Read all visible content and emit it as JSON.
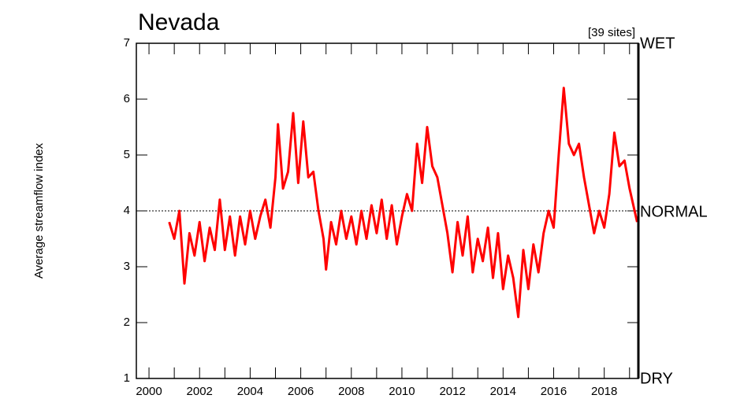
{
  "chart_data": {
    "type": "line",
    "title": "Nevada",
    "ylabel": "Average streamflow index",
    "annotations": {
      "sites": "[39 sites]",
      "wet": "WET",
      "normal": "NORMAL",
      "dry": "DRY"
    },
    "normal_line": 4,
    "xlim": [
      1999.5,
      2019.35
    ],
    "xticks": [
      2000,
      2002,
      2004,
      2006,
      2008,
      2010,
      2012,
      2014,
      2016,
      2018
    ],
    "x_minor_ticks": [
      2001,
      2003,
      2005,
      2007,
      2009,
      2011,
      2013,
      2015,
      2017,
      2019
    ],
    "ylim": [
      1,
      7
    ],
    "yticks": [
      1,
      2,
      3,
      4,
      5,
      6,
      7
    ],
    "series": [
      {
        "color": "#ff0000",
        "x": [
          2000.8,
          2001.0,
          2001.2,
          2001.4,
          2001.6,
          2001.8,
          2002.0,
          2002.2,
          2002.4,
          2002.6,
          2002.8,
          2003.0,
          2003.2,
          2003.4,
          2003.6,
          2003.8,
          2004.0,
          2004.2,
          2004.4,
          2004.6,
          2004.8,
          2005.0,
          2005.1,
          2005.3,
          2005.5,
          2005.7,
          2005.9,
          2006.1,
          2006.3,
          2006.5,
          2006.7,
          2006.9,
          2007.0,
          2007.2,
          2007.4,
          2007.6,
          2007.8,
          2008.0,
          2008.2,
          2008.4,
          2008.6,
          2008.8,
          2009.0,
          2009.2,
          2009.4,
          2009.6,
          2009.8,
          2010.0,
          2010.2,
          2010.4,
          2010.6,
          2010.8,
          2011.0,
          2011.2,
          2011.4,
          2011.6,
          2011.8,
          2012.0,
          2012.2,
          2012.4,
          2012.6,
          2012.8,
          2013.0,
          2013.2,
          2013.4,
          2013.6,
          2013.8,
          2014.0,
          2014.2,
          2014.4,
          2014.6,
          2014.8,
          2015.0,
          2015.2,
          2015.4,
          2015.6,
          2015.8,
          2016.0,
          2016.2,
          2016.4,
          2016.6,
          2016.8,
          2017.0,
          2017.2,
          2017.4,
          2017.6,
          2017.8,
          2018.0,
          2018.2,
          2018.4,
          2018.6,
          2018.8,
          2019.0,
          2019.2,
          2019.3
        ],
        "values": [
          3.8,
          3.5,
          4.0,
          2.7,
          3.6,
          3.2,
          3.8,
          3.1,
          3.7,
          3.3,
          4.2,
          3.3,
          3.9,
          3.2,
          3.9,
          3.4,
          4.0,
          3.5,
          3.9,
          4.2,
          3.7,
          4.6,
          5.55,
          4.4,
          4.7,
          5.75,
          4.5,
          5.6,
          4.6,
          4.7,
          4.0,
          3.5,
          2.95,
          3.8,
          3.4,
          4.0,
          3.5,
          3.9,
          3.4,
          4.0,
          3.5,
          4.1,
          3.6,
          4.2,
          3.5,
          4.1,
          3.4,
          3.9,
          4.3,
          4.0,
          5.2,
          4.5,
          5.5,
          4.8,
          4.6,
          4.1,
          3.6,
          2.9,
          3.8,
          3.2,
          3.9,
          2.9,
          3.5,
          3.1,
          3.7,
          2.8,
          3.6,
          2.6,
          3.2,
          2.8,
          2.1,
          3.3,
          2.6,
          3.4,
          2.9,
          3.6,
          4.0,
          3.7,
          5.0,
          6.2,
          5.2,
          5.0,
          5.2,
          4.6,
          4.1,
          3.6,
          4.0,
          3.7,
          4.3,
          5.4,
          4.8,
          4.9,
          4.4,
          4.0,
          3.8
        ]
      }
    ]
  }
}
